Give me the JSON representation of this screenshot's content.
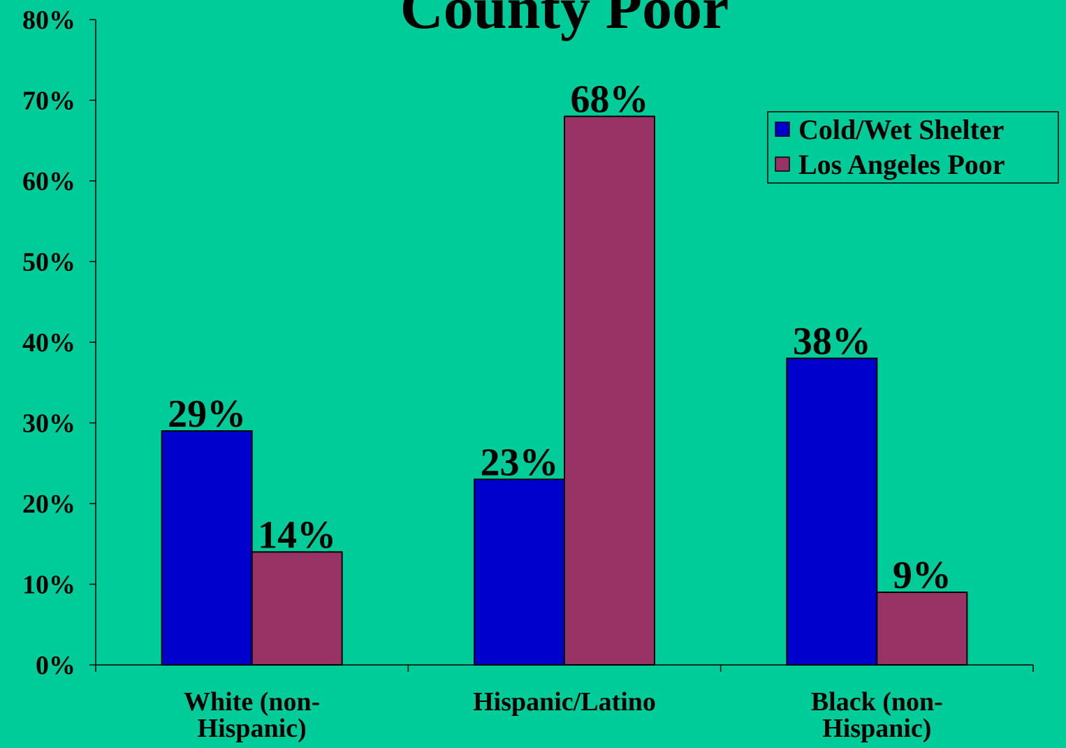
{
  "chart_data": {
    "type": "bar",
    "title": "County Poor",
    "categories": [
      "White (non-Hispanic)",
      "Hispanic/Latino",
      "Black (non-Hispanic)"
    ],
    "category_lines": [
      [
        "White (non-",
        "Hispanic)"
      ],
      [
        "Hispanic/Latino"
      ],
      [
        "Black (non-",
        "Hispanic)"
      ]
    ],
    "series": [
      {
        "name": "Cold/Wet Shelter",
        "values": [
          29,
          23,
          38
        ],
        "labels": [
          "29%",
          "23%",
          "38%"
        ],
        "color": "#0000CC"
      },
      {
        "name": "Los Angeles Poor",
        "values": [
          14,
          68,
          9
        ],
        "labels": [
          "14%",
          "68%",
          "9%"
        ],
        "color": "#993366"
      }
    ],
    "ylim": [
      0,
      80
    ],
    "yticks": [
      "0%",
      "10%",
      "20%",
      "30%",
      "40%",
      "50%",
      "60%",
      "70%",
      "80%"
    ],
    "xlabel": "",
    "ylabel": "",
    "grid": false,
    "legend_position": "top-right",
    "background_color": "#00CC99"
  }
}
